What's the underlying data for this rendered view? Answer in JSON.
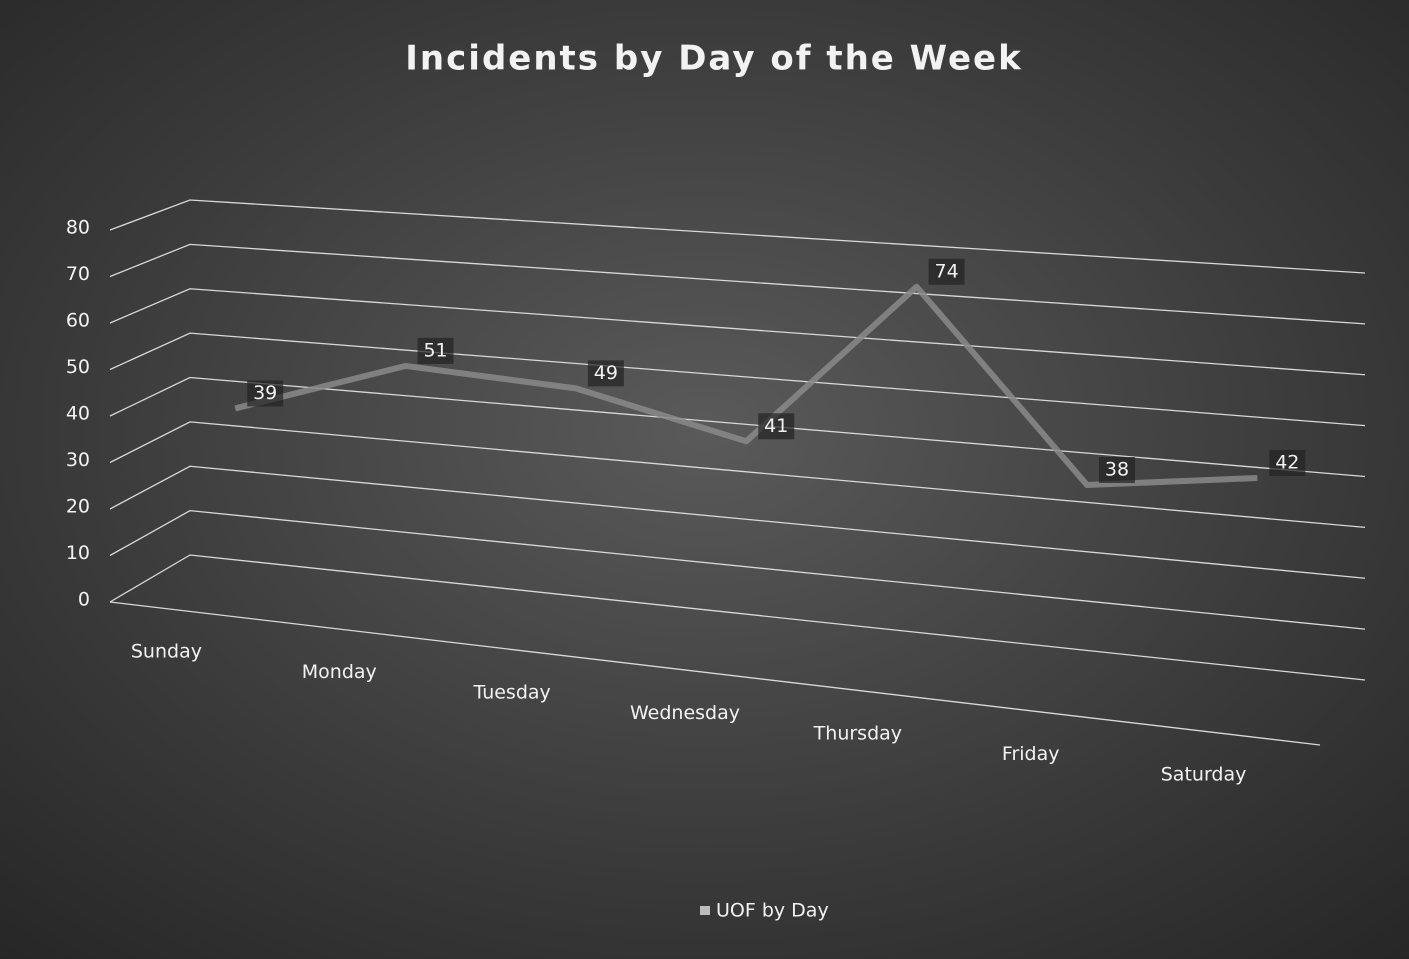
{
  "chart_data": {
    "type": "line3d",
    "title": "Incidents by Day of the Week",
    "categories": [
      "Sunday",
      "Monday",
      "Tuesday",
      "Wednesday",
      "Thursday",
      "Friday",
      "Saturday"
    ],
    "series": [
      {
        "name": "UOF by Day",
        "color": "#8a8a8a",
        "values": [
          39,
          51,
          49,
          41,
          74,
          38,
          42
        ]
      }
    ],
    "ylim": [
      0,
      80
    ],
    "yticks": [
      0,
      10,
      20,
      30,
      40,
      50,
      60,
      70,
      80
    ],
    "grid": true,
    "legend": "bottom"
  }
}
